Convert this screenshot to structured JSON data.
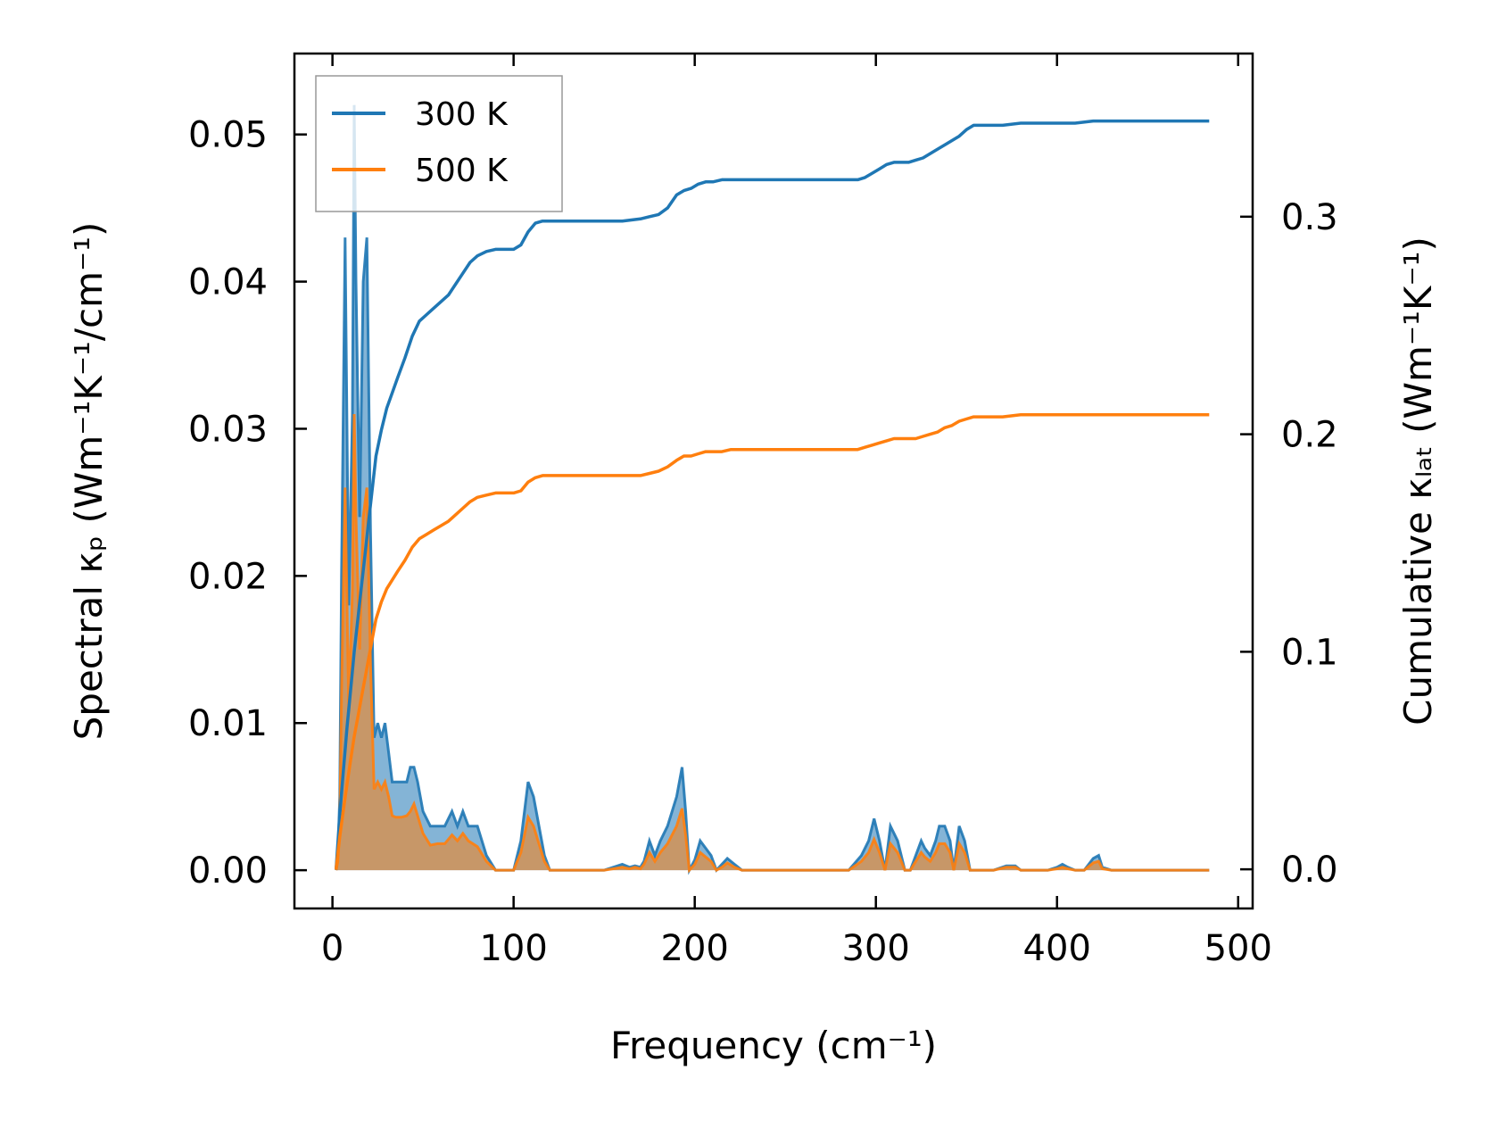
{
  "chart_data": {
    "type": "area",
    "xlabel": "Frequency (cm⁻¹)",
    "ylabel_left": "Spectral κₚ (Wm⁻¹K⁻¹/cm⁻¹)",
    "ylabel_right": "Cumulative κₗₐₜ (Wm⁻¹K⁻¹)",
    "xlim": [
      -21,
      508
    ],
    "ylim_left": [
      -0.0026,
      0.0555
    ],
    "ylim_right": [
      -0.018,
      0.375
    ],
    "x_ticks": [
      0,
      100,
      200,
      300,
      400,
      500
    ],
    "y_ticks_left": [
      0.0,
      0.01,
      0.02,
      0.03,
      0.04,
      0.05
    ],
    "y_ticks_right": [
      0.0,
      0.1,
      0.2,
      0.3
    ],
    "legend": {
      "position": "top-left",
      "entries": [
        "300 K",
        "500 K"
      ]
    },
    "colors": {
      "300 K": "#1f77b4",
      "500 K": "#ff7f0e"
    },
    "series": [
      {
        "name": "300 K",
        "axis": "left",
        "kind": "spectral",
        "x": [
          2,
          3,
          4,
          5,
          7,
          9,
          11,
          12,
          13,
          15,
          17,
          19,
          21,
          23,
          25,
          27,
          29,
          31,
          33,
          35,
          38,
          41,
          43,
          45,
          47,
          50,
          54,
          58,
          62,
          66,
          69,
          72,
          75,
          80,
          85,
          90,
          95,
          100,
          104,
          108,
          111,
          114,
          117,
          120,
          130,
          140,
          150,
          155,
          160,
          164,
          167,
          170,
          172,
          175,
          178,
          181,
          185,
          190,
          193,
          195,
          197,
          200,
          203,
          206,
          209,
          212,
          215,
          218,
          222,
          226,
          240,
          260,
          285,
          292,
          296,
          299,
          302,
          305,
          308,
          312,
          316,
          319,
          322,
          325,
          327,
          330,
          333,
          335,
          338,
          341,
          343,
          346,
          349,
          352,
          355,
          365,
          372,
          377,
          380,
          395,
          400,
          403,
          406,
          410,
          415,
          420,
          423,
          425,
          430,
          440,
          450,
          460,
          484
        ],
        "y": [
          0.0,
          0.001,
          0.005,
          0.02,
          0.043,
          0.018,
          0.031,
          0.052,
          0.04,
          0.024,
          0.04,
          0.043,
          0.023,
          0.009,
          0.01,
          0.009,
          0.01,
          0.008,
          0.006,
          0.006,
          0.006,
          0.006,
          0.007,
          0.007,
          0.006,
          0.004,
          0.003,
          0.003,
          0.003,
          0.004,
          0.003,
          0.004,
          0.003,
          0.003,
          0.001,
          0.0,
          0.0,
          0.0,
          0.002,
          0.006,
          0.005,
          0.003,
          0.001,
          0.0,
          0.0,
          0.0,
          0.0,
          0.0002,
          0.0004,
          0.0002,
          0.0003,
          0.0002,
          0.0006,
          0.002,
          0.001,
          0.002,
          0.003,
          0.005,
          0.007,
          0.004,
          0.0,
          0.0007,
          0.002,
          0.0015,
          0.001,
          0.0,
          0.0004,
          0.0008,
          0.0004,
          0.0,
          0.0,
          0.0,
          0.0,
          0.001,
          0.002,
          0.0035,
          0.002,
          0.0,
          0.003,
          0.002,
          0.0,
          0.0,
          0.001,
          0.002,
          0.0015,
          0.001,
          0.002,
          0.003,
          0.003,
          0.002,
          0.0,
          0.003,
          0.002,
          0.0,
          0.0,
          0.0,
          0.0003,
          0.0003,
          0.0,
          0.0,
          0.0002,
          0.0004,
          0.0002,
          0.0,
          0.0,
          0.0008,
          0.001,
          0.0002,
          0.0,
          0.0,
          0.0,
          0.0,
          0.0
        ]
      },
      {
        "name": "500 K",
        "axis": "left",
        "kind": "spectral",
        "x": [
          2,
          3,
          4,
          5,
          7,
          9,
          11,
          12,
          13,
          15,
          17,
          19,
          21,
          23,
          25,
          27,
          29,
          31,
          33,
          35,
          38,
          41,
          43,
          45,
          47,
          50,
          54,
          58,
          62,
          66,
          69,
          72,
          75,
          80,
          85,
          90,
          95,
          100,
          104,
          108,
          111,
          114,
          117,
          120,
          130,
          140,
          150,
          155,
          160,
          164,
          167,
          170,
          172,
          175,
          178,
          181,
          185,
          190,
          193,
          195,
          197,
          200,
          203,
          206,
          209,
          212,
          215,
          218,
          222,
          226,
          240,
          260,
          285,
          292,
          296,
          299,
          302,
          305,
          308,
          312,
          316,
          319,
          322,
          325,
          327,
          330,
          333,
          335,
          338,
          341,
          343,
          346,
          349,
          352,
          355,
          365,
          372,
          377,
          380,
          395,
          400,
          403,
          406,
          410,
          415,
          420,
          423,
          425,
          430,
          440,
          450,
          460,
          484
        ],
        "y": [
          0.0,
          0.0006,
          0.003,
          0.012,
          0.026,
          0.011,
          0.019,
          0.031,
          0.024,
          0.015,
          0.024,
          0.026,
          0.014,
          0.0055,
          0.006,
          0.0055,
          0.006,
          0.005,
          0.0037,
          0.0036,
          0.0036,
          0.0037,
          0.004,
          0.0045,
          0.0037,
          0.0025,
          0.0017,
          0.0018,
          0.0018,
          0.0024,
          0.002,
          0.0025,
          0.002,
          0.0016,
          0.0006,
          0.0,
          0.0,
          0.0,
          0.0012,
          0.0036,
          0.003,
          0.0018,
          0.0006,
          0.0,
          0.0,
          0.0,
          0.0,
          0.0001,
          0.0002,
          0.0001,
          0.0002,
          0.0001,
          0.0004,
          0.0012,
          0.0006,
          0.0012,
          0.0018,
          0.003,
          0.0042,
          0.0024,
          0.0,
          0.0004,
          0.0012,
          0.0009,
          0.0006,
          0.0,
          0.0002,
          0.0005,
          0.0002,
          0.0,
          0.0,
          0.0,
          0.0,
          0.0006,
          0.0012,
          0.0021,
          0.0012,
          0.0,
          0.0018,
          0.0012,
          0.0,
          0.0,
          0.0006,
          0.0012,
          0.0009,
          0.0006,
          0.0012,
          0.0018,
          0.0018,
          0.0012,
          0.0,
          0.0018,
          0.0012,
          0.0,
          0.0,
          0.0,
          0.0002,
          0.0002,
          0.0,
          0.0,
          0.0001,
          0.0002,
          0.0001,
          0.0,
          0.0,
          0.0005,
          0.0006,
          0.0001,
          0.0,
          0.0,
          0.0,
          0.0,
          0.0
        ]
      },
      {
        "name": "300 K",
        "axis": "right",
        "kind": "cumulative",
        "x": [
          2,
          4,
          6,
          8,
          10,
          12,
          14,
          16,
          18,
          20,
          22,
          24,
          27,
          30,
          33,
          36,
          40,
          44,
          48,
          52,
          56,
          60,
          64,
          68,
          72,
          76,
          80,
          85,
          90,
          95,
          100,
          104,
          108,
          112,
          116,
          120,
          140,
          160,
          170,
          175,
          180,
          185,
          190,
          194,
          198,
          202,
          206,
          210,
          215,
          220,
          240,
          260,
          280,
          290,
          294,
          298,
          302,
          306,
          310,
          314,
          318,
          322,
          326,
          330,
          334,
          338,
          342,
          346,
          350,
          354,
          370,
          380,
          400,
          410,
          420,
          425,
          440,
          460,
          484
        ],
        "y": [
          0.0,
          0.025,
          0.045,
          0.065,
          0.082,
          0.1,
          0.115,
          0.13,
          0.145,
          0.16,
          0.175,
          0.19,
          0.202,
          0.212,
          0.219,
          0.226,
          0.235,
          0.245,
          0.252,
          0.255,
          0.258,
          0.261,
          0.264,
          0.269,
          0.274,
          0.279,
          0.282,
          0.284,
          0.285,
          0.285,
          0.285,
          0.287,
          0.293,
          0.297,
          0.298,
          0.298,
          0.298,
          0.298,
          0.299,
          0.3,
          0.301,
          0.304,
          0.31,
          0.312,
          0.313,
          0.315,
          0.316,
          0.316,
          0.317,
          0.317,
          0.317,
          0.317,
          0.317,
          0.317,
          0.318,
          0.32,
          0.322,
          0.324,
          0.325,
          0.325,
          0.325,
          0.326,
          0.327,
          0.329,
          0.331,
          0.333,
          0.335,
          0.337,
          0.34,
          0.342,
          0.342,
          0.343,
          0.343,
          0.343,
          0.344,
          0.344,
          0.344,
          0.344,
          0.344
        ]
      },
      {
        "name": "500 K",
        "axis": "right",
        "kind": "cumulative",
        "x": [
          2,
          4,
          6,
          8,
          10,
          12,
          14,
          16,
          18,
          20,
          22,
          24,
          27,
          30,
          33,
          36,
          40,
          44,
          48,
          52,
          56,
          60,
          64,
          68,
          72,
          76,
          80,
          85,
          90,
          95,
          100,
          104,
          108,
          112,
          116,
          120,
          140,
          160,
          170,
          175,
          180,
          185,
          190,
          194,
          198,
          202,
          206,
          210,
          215,
          220,
          240,
          260,
          280,
          290,
          294,
          298,
          302,
          306,
          310,
          314,
          318,
          322,
          326,
          330,
          334,
          338,
          342,
          346,
          350,
          354,
          370,
          380,
          400,
          410,
          420,
          425,
          440,
          460,
          484
        ],
        "y": [
          0.0,
          0.015,
          0.027,
          0.039,
          0.05,
          0.061,
          0.07,
          0.079,
          0.088,
          0.097,
          0.106,
          0.115,
          0.123,
          0.129,
          0.133,
          0.137,
          0.142,
          0.148,
          0.152,
          0.154,
          0.156,
          0.158,
          0.16,
          0.163,
          0.166,
          0.169,
          0.171,
          0.172,
          0.173,
          0.173,
          0.173,
          0.174,
          0.178,
          0.18,
          0.181,
          0.181,
          0.181,
          0.181,
          0.181,
          0.182,
          0.183,
          0.185,
          0.188,
          0.19,
          0.19,
          0.191,
          0.192,
          0.192,
          0.192,
          0.193,
          0.193,
          0.193,
          0.193,
          0.193,
          0.194,
          0.195,
          0.196,
          0.197,
          0.198,
          0.198,
          0.198,
          0.198,
          0.199,
          0.2,
          0.201,
          0.203,
          0.204,
          0.206,
          0.207,
          0.208,
          0.208,
          0.209,
          0.209,
          0.209,
          0.209,
          0.209,
          0.209,
          0.209,
          0.209
        ]
      }
    ]
  }
}
